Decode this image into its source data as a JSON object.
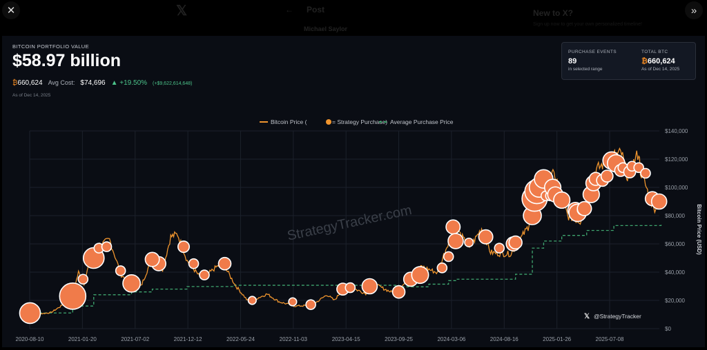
{
  "background": {
    "post_title": "Post",
    "author": "Michael Saylor",
    "new_to_x": "New to X?",
    "signup": "Sign up now to get your own personalized timeline!"
  },
  "header": {
    "label": "BITCOIN PORTFOLIO VALUE",
    "value": "$58.97 billion",
    "btc_symbol": "₿",
    "btc_amount": "660,624",
    "avg_cost_label": "Avg Cost:",
    "avg_cost": "$74,696",
    "change_pct": "+19.50%",
    "change_abs": "(+$9,622,614,648)",
    "as_of": "As of Dec 14, 2025"
  },
  "card": {
    "events_label": "PURCHASE EVENTS",
    "events_value": "89",
    "events_sub": "in selected range",
    "total_label": "TOTAL BTC",
    "total_symbol": "₿",
    "total_value": "660,624",
    "total_sub": "As of Dec 14, 2025"
  },
  "colors": {
    "price": "#f0952e",
    "purchase": "#f07b4a",
    "average": "#3fa66f",
    "panel": "#0a0d14",
    "grid": "#1c212b"
  },
  "chart_data": {
    "type": "line",
    "legend": {
      "placement": "top-center",
      "price": "Bitcoin Price (",
      "purchase_suffix": " = Strategy Purchase)",
      "average": "Average Purchase Price"
    },
    "ylabel": "Bitcoin Price (USD)",
    "ylim": [
      0,
      140000
    ],
    "yticks": [
      "$0",
      "$20,000",
      "$40,000",
      "$60,000",
      "$80,000",
      "$100,000",
      "$120,000",
      "$140,000"
    ],
    "xticks": [
      "2020-08-10",
      "2021-01-20",
      "2021-07-02",
      "2021-12-12",
      "2022-05-24",
      "2022-11-03",
      "2023-04-15",
      "2023-09-25",
      "2024-03-06",
      "2024-08-16",
      "2025-01-26",
      "2025-07-08"
    ],
    "grid": true,
    "watermark": "StrategyTracker.com",
    "credit": "@StrategyTracker",
    "price_series": [
      [
        "2020-08-01",
        11300
      ],
      [
        "2020-09-05",
        10300
      ],
      [
        "2020-10-15",
        11400
      ],
      [
        "2020-11-15",
        16000
      ],
      [
        "2020-12-20",
        23500
      ],
      [
        "2021-01-08",
        40000
      ],
      [
        "2021-01-25",
        32000
      ],
      [
        "2021-02-20",
        55000
      ],
      [
        "2021-03-15",
        59000
      ],
      [
        "2021-04-14",
        63000
      ],
      [
        "2021-05-20",
        38000
      ],
      [
        "2021-06-22",
        31000
      ],
      [
        "2021-07-20",
        30000
      ],
      [
        "2021-08-20",
        48000
      ],
      [
        "2021-09-07",
        51000
      ],
      [
        "2021-09-25",
        42000
      ],
      [
        "2021-10-20",
        65000
      ],
      [
        "2021-11-10",
        67000
      ],
      [
        "2021-12-10",
        48000
      ],
      [
        "2022-01-24",
        35000
      ],
      [
        "2022-03-28",
        47000
      ],
      [
        "2022-05-10",
        30000
      ],
      [
        "2022-06-18",
        19000
      ],
      [
        "2022-08-14",
        24500
      ],
      [
        "2022-09-20",
        19000
      ],
      [
        "2022-11-08",
        16000
      ],
      [
        "2022-12-31",
        16500
      ],
      [
        "2023-02-15",
        24000
      ],
      [
        "2023-03-10",
        20000
      ],
      [
        "2023-04-14",
        30500
      ],
      [
        "2023-06-15",
        25000
      ],
      [
        "2023-07-15",
        31000
      ],
      [
        "2023-09-11",
        25000
      ],
      [
        "2023-10-25",
        34500
      ],
      [
        "2023-12-05",
        44000
      ],
      [
        "2024-01-23",
        39500
      ],
      [
        "2024-03-14",
        73000
      ],
      [
        "2024-05-01",
        57000
      ],
      [
        "2024-06-07",
        71000
      ],
      [
        "2024-07-05",
        54000
      ],
      [
        "2024-08-05",
        53000
      ],
      [
        "2024-09-06",
        53000
      ],
      [
        "2024-10-29",
        72000
      ],
      [
        "2024-11-22",
        99000
      ],
      [
        "2024-12-17",
        106000
      ],
      [
        "2025-01-20",
        109000
      ],
      [
        "2025-02-28",
        80000
      ],
      [
        "2025-04-08",
        76000
      ],
      [
        "2025-05-22",
        111000
      ],
      [
        "2025-07-14",
        122000
      ],
      [
        "2025-08-14",
        124000
      ],
      [
        "2025-09-01",
        108000
      ],
      [
        "2025-10-06",
        125000
      ],
      [
        "2025-10-11",
        112000
      ],
      [
        "2025-11-21",
        85000
      ],
      [
        "2025-12-14",
        90000
      ]
    ],
    "average_series": [
      [
        "2020-08-10",
        11100
      ],
      [
        "2020-12-21",
        16000
      ],
      [
        "2021-02-24",
        24000
      ],
      [
        "2021-06-21",
        26000
      ],
      [
        "2021-08-24",
        28000
      ],
      [
        "2021-12-09",
        29800
      ],
      [
        "2022-05-01",
        30700
      ],
      [
        "2023-09-25",
        29600
      ],
      [
        "2023-12-27",
        31500
      ],
      [
        "2024-02-26",
        34000
      ],
      [
        "2024-03-19",
        35000
      ],
      [
        "2024-09-20",
        38500
      ],
      [
        "2024-11-11",
        57000
      ],
      [
        "2024-12-16",
        62000
      ],
      [
        "2025-02-10",
        66000
      ],
      [
        "2025-04-28",
        69500
      ],
      [
        "2025-07-21",
        73000
      ],
      [
        "2025-12-14",
        74696
      ]
    ],
    "purchases": [
      [
        "2020-08-11",
        11000,
        3
      ],
      [
        "2020-12-21",
        23000,
        4
      ],
      [
        "2021-02-24",
        50000,
        3
      ],
      [
        "2021-03-12",
        57000,
        1
      ],
      [
        "2021-04-05",
        58000,
        1
      ],
      [
        "2021-01-22",
        35000,
        1
      ],
      [
        "2021-05-18",
        41000,
        1
      ],
      [
        "2021-06-21",
        32000,
        2.4
      ],
      [
        "2021-09-13",
        46000,
        1.8
      ],
      [
        "2021-08-24",
        49000,
        1.8
      ],
      [
        "2021-11-29",
        58000,
        1.3
      ],
      [
        "2021-12-30",
        46000,
        1
      ],
      [
        "2022-02-01",
        38000,
        1
      ],
      [
        "2022-04-05",
        46000,
        1.5
      ],
      [
        "2022-06-29",
        20000,
        0.7
      ],
      [
        "2022-11-01",
        19000,
        0.7
      ],
      [
        "2022-12-27",
        17000,
        1
      ],
      [
        "2023-04-05",
        28000,
        1.4
      ],
      [
        "2023-04-28",
        29000,
        1
      ],
      [
        "2023-06-27",
        30000,
        2
      ],
      [
        "2023-09-25",
        26000,
        1.5
      ],
      [
        "2023-11-01",
        35000,
        1.8
      ],
      [
        "2023-11-30",
        38000,
        2.3
      ],
      [
        "2024-02-06",
        43000,
        1
      ],
      [
        "2024-02-26",
        51000,
        1
      ],
      [
        "2024-03-11",
        72000,
        1.8
      ],
      [
        "2024-03-19",
        62000,
        2
      ],
      [
        "2024-04-29",
        61000,
        0.8
      ],
      [
        "2024-06-20",
        65000,
        1.8
      ],
      [
        "2024-08-01",
        57000,
        1
      ],
      [
        "2024-09-13",
        60000,
        1.8
      ],
      [
        "2024-09-20",
        61000,
        1.6
      ],
      [
        "2024-11-11",
        80000,
        2.5
      ],
      [
        "2024-11-18",
        92000,
        3.8
      ],
      [
        "2024-11-25",
        97000,
        3.6
      ],
      [
        "2024-12-02",
        100000,
        2.8
      ],
      [
        "2024-12-16",
        106000,
        2.6
      ],
      [
        "2024-12-23",
        94000,
        1
      ],
      [
        "2025-01-06",
        94000,
        1
      ],
      [
        "2025-01-13",
        100000,
        2.2
      ],
      [
        "2025-01-21",
        95000,
        2
      ],
      [
        "2025-02-10",
        91000,
        2.2
      ],
      [
        "2025-03-24",
        84000,
        2
      ],
      [
        "2025-03-31",
        82000,
        2.4
      ],
      [
        "2025-04-14",
        84000,
        1
      ],
      [
        "2025-04-21",
        85000,
        1.8
      ],
      [
        "2025-05-12",
        95000,
        2.2
      ],
      [
        "2025-05-19",
        103000,
        2
      ],
      [
        "2025-05-26",
        106000,
        1.6
      ],
      [
        "2025-06-16",
        105000,
        1.4
      ],
      [
        "2025-06-30",
        108000,
        1.4
      ],
      [
        "2025-07-14",
        119000,
        2.4
      ],
      [
        "2025-07-28",
        117000,
        2.4
      ],
      [
        "2025-08-11",
        112000,
        1.4
      ],
      [
        "2025-08-18",
        114000,
        1
      ],
      [
        "2025-09-08",
        111000,
        1.4
      ],
      [
        "2025-09-15",
        115000,
        1
      ],
      [
        "2025-10-06",
        114000,
        1
      ],
      [
        "2025-10-27",
        110000,
        1
      ],
      [
        "2025-11-17",
        92000,
        1.8
      ],
      [
        "2025-12-08",
        90000,
        2
      ]
    ]
  }
}
